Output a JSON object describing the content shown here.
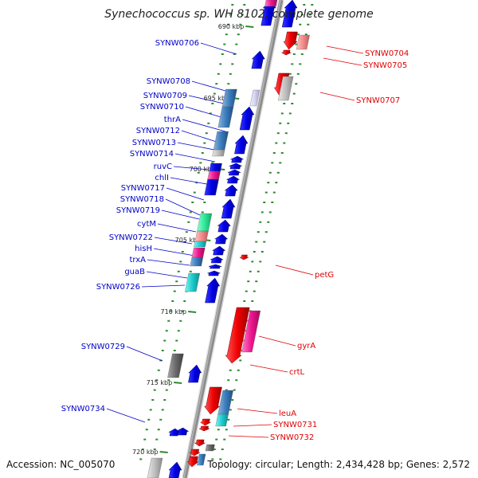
{
  "title": "Synechococcus sp. WH 8102, complete genome",
  "footer": {
    "accession": "Accession: NC_005070",
    "summary": "Topology: circular; Length: 2,434,428 bp; Genes: 2,572"
  },
  "colors": {
    "backbone": "#8c8c8c",
    "tick": "#2e8b2e",
    "forward_label": "#e00000",
    "reverse_label": "#0000c8"
  },
  "ticks": [
    "690 kbp",
    "695 kbp",
    "700 kbp",
    "705 kbp",
    "710 kbp",
    "715 kbp",
    "720 kbp"
  ],
  "reverse_labels": [
    "SYNW0706",
    "SYNW0708",
    "SYNW0709",
    "SYNW0710",
    "thrA",
    "SYNW0712",
    "SYNW0713",
    "SYNW0714",
    "ruvC",
    "chlI",
    "SYNW0717",
    "SYNW0718",
    "SYNW0719",
    "cytM",
    "SYNW0722",
    "hisH",
    "trxA",
    "guaB",
    "SYNW0726",
    "SYNW0729",
    "SYNW0734"
  ],
  "forward_labels": [
    "SYNW0704",
    "SYNW0705",
    "SYNW0707",
    "petG",
    "gyrA",
    "crtL",
    "leuA",
    "SYNW0731",
    "SYNW0732"
  ]
}
